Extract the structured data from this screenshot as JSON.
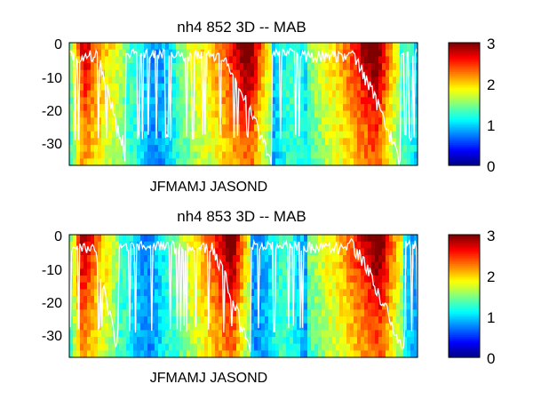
{
  "chart_data": [
    {
      "type": "heatmap",
      "title": "nh4   852 3D   -- MAB",
      "xlabel": "JFMAMJ JASOND",
      "ylabel": "",
      "y_ticks": [
        "0",
        "-10",
        "-20",
        "-30"
      ],
      "ylim": [
        -37,
        0
      ],
      "colorbar": {
        "ticks": [
          "0",
          "1",
          "2",
          "3"
        ],
        "clim": [
          0,
          3
        ],
        "colormap": "jet"
      },
      "overlay_line_color": "#ffffff",
      "seasons": [
        {
          "start": 0.0,
          "end": 0.16,
          "peak": 2.6,
          "peak_at": 0.04
        },
        {
          "start": 0.31,
          "end": 0.58,
          "peak": 3.0,
          "peak_at": 0.52
        },
        {
          "start": 0.68,
          "end": 0.95,
          "peak": 3.0,
          "peak_at": 0.88
        }
      ]
    },
    {
      "type": "heatmap",
      "title": "nh4   853 3D   -- MAB",
      "xlabel": "JFMAMJ JASOND",
      "ylabel": "",
      "y_ticks": [
        "0",
        "-10",
        "-20",
        "-30"
      ],
      "ylim": [
        -37,
        0
      ],
      "colorbar": {
        "ticks": [
          "0",
          "1",
          "2",
          "3"
        ],
        "clim": [
          0,
          3
        ],
        "colormap": "jet"
      },
      "overlay_line_color": "#ffffff",
      "seasons": [
        {
          "start": 0.0,
          "end": 0.14,
          "peak": 2.7,
          "peak_at": 0.04
        },
        {
          "start": 0.3,
          "end": 0.52,
          "peak": 3.0,
          "peak_at": 0.47
        },
        {
          "start": 0.68,
          "end": 0.96,
          "peak": 3.0,
          "peak_at": 0.89
        }
      ]
    }
  ]
}
